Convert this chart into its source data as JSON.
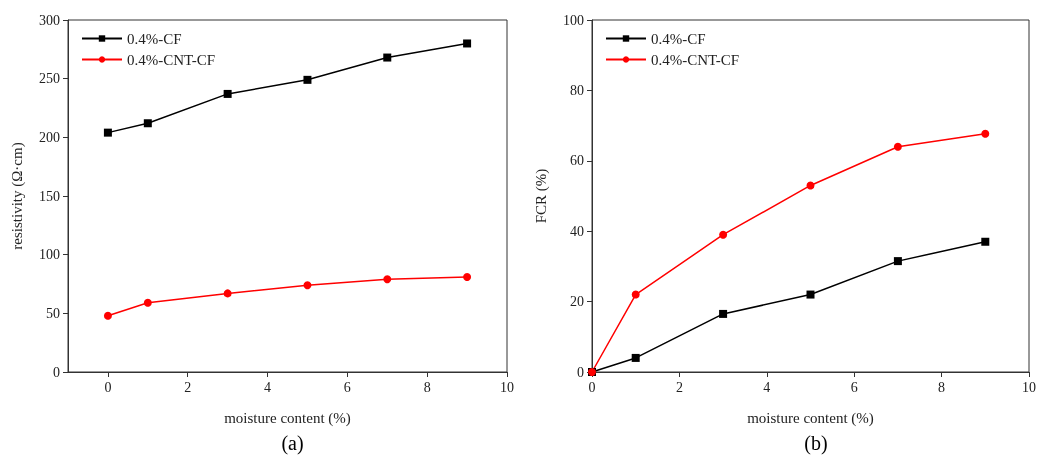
{
  "chart_data": [
    {
      "type": "line",
      "title": "(a)",
      "xlabel": "moisture content (%)",
      "ylabel": "resistivity (Ω·cm)",
      "x": [
        0,
        1,
        3,
        5,
        7,
        9
      ],
      "xlim": [
        -1,
        10
      ],
      "xticks": [
        0,
        2,
        4,
        6,
        8,
        10
      ],
      "ylim": [
        0,
        300
      ],
      "yticks": [
        0,
        50,
        100,
        150,
        200,
        250,
        300
      ],
      "grid": false,
      "legend": "top left",
      "line_style": "solid",
      "series": [
        {
          "name": "0.4%-CF",
          "color": "#000000",
          "marker": "square",
          "values": [
            204,
            212,
            237,
            249,
            268,
            280
          ]
        },
        {
          "name": "0.4%-CNT-CF",
          "color": "#ff0000",
          "marker": "circle",
          "values": [
            48,
            59,
            67,
            74,
            79,
            81
          ]
        }
      ]
    },
    {
      "type": "line",
      "title": "(b)",
      "xlabel": "moisture content (%)",
      "ylabel": "FCR (%)",
      "x": [
        0,
        1,
        3,
        5,
        7,
        9
      ],
      "xlim": [
        0,
        10
      ],
      "xticks": [
        0,
        2,
        4,
        6,
        8,
        10
      ],
      "ylim": [
        0,
        100
      ],
      "yticks": [
        0,
        20,
        40,
        60,
        80,
        100
      ],
      "grid": false,
      "legend": "top left",
      "line_style": "solid",
      "series": [
        {
          "name": "0.4%-CF",
          "color": "#000000",
          "marker": "square",
          "values": [
            0,
            4,
            16.5,
            22,
            31.5,
            37
          ]
        },
        {
          "name": "0.4%-CNT-CF",
          "color": "#ff0000",
          "marker": "circle",
          "values": [
            0,
            22,
            39,
            53,
            64,
            67.7
          ]
        }
      ]
    }
  ]
}
